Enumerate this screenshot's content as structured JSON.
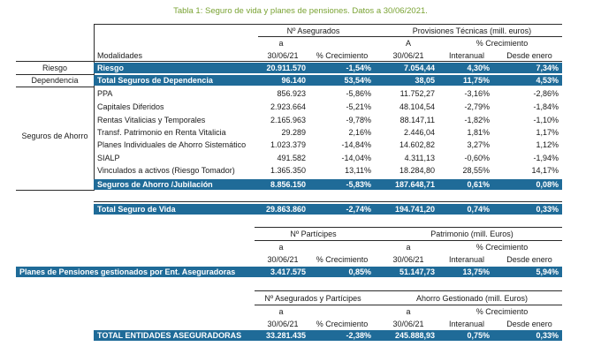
{
  "title": "Tabla 1: Seguro de vida y planes de pensiones. Datos a 30/06/2021.",
  "colors": {
    "band": "#1f6b98",
    "title": "#7aa334"
  },
  "s1": {
    "h_asegurados": "Nº Asegurados",
    "h_provisiones": "Provisiones Técnicas (mill. euros)",
    "h_a": "a",
    "h_a2": "A",
    "h_crec": "% Crecimiento",
    "h_modalidades": "Modalidades",
    "h_date": "30/06/21",
    "h_crec2": "% Crecimiento",
    "h_date2": "30/06/21",
    "h_interanual": "Interanual",
    "h_desde": "Desde enero",
    "cat_riesgo": "Riesgo",
    "cat_dependencia": "Dependencia",
    "cat_ahorro": "Seguros de Ahorro",
    "riesgo": {
      "label": "Riesgo",
      "v1": "20.911.570",
      "v2": "-1,54%",
      "v3": "7.054,44",
      "v4": "4,30%",
      "v5": "7,34%"
    },
    "dependencia": {
      "label": "Total Seguros de Dependencia",
      "v1": "96.140",
      "v2": "53,54%",
      "v3": "38,05",
      "v4": "11,75%",
      "v5": "4,53%"
    },
    "ahorro_rows": [
      {
        "label": "PPA",
        "v1": "856.923",
        "v2": "-5,86%",
        "v3": "11.752,27",
        "v4": "-3,16%",
        "v5": "-2,86%"
      },
      {
        "label": "Capitales Diferidos",
        "v1": "2.923.664",
        "v2": "-5,21%",
        "v3": "48.104,54",
        "v4": "-2,79%",
        "v5": "-1,84%"
      },
      {
        "label": "Rentas Vitalicias y Temporales",
        "v1": "2.165.963",
        "v2": "-9,78%",
        "v3": "88.147,11",
        "v4": "-1,82%",
        "v5": "-1,10%"
      },
      {
        "label": "Transf. Patrimonio en Renta Vitalicia",
        "v1": "29.289",
        "v2": "2,16%",
        "v3": "2.446,04",
        "v4": "1,81%",
        "v5": "1,17%"
      },
      {
        "label": "Planes Individuales de Ahorro Sistemático",
        "v1": "1.023.379",
        "v2": "-14,84%",
        "v3": "14.602,82",
        "v4": "3,27%",
        "v5": "1,12%"
      },
      {
        "label": "SIALP",
        "v1": "491.582",
        "v2": "-14,04%",
        "v3": "4.311,13",
        "v4": "-0,60%",
        "v5": "-1,94%"
      },
      {
        "label": "Vinculados a activos (Riesgo Tomador)",
        "v1": "1.365.350",
        "v2": "13,11%",
        "v3": "18.284,80",
        "v4": "28,55%",
        "v5": "14,17%"
      }
    ],
    "ahorro_total": {
      "label": "Seguros de Ahorro /Jubilación",
      "v1": "8.856.150",
      "v2": "-5,83%",
      "v3": "187.648,71",
      "v4": "0,61%",
      "v5": "0,08%"
    },
    "total_vida": {
      "label": "Total Seguro de Vida",
      "v1": "29.863.860",
      "v2": "-2,74%",
      "v3": "194.741,20",
      "v4": "0,74%",
      "v5": "0,33%"
    }
  },
  "s2": {
    "h_participes": "Nº Partícipes",
    "h_patrimonio": "Patrimonio (mill. Euros)",
    "h_a": "a",
    "h_a2": "a",
    "h_crec": "% Crecimiento",
    "h_date": "30/06/21",
    "h_crec2": "% Crecimiento",
    "h_date2": "30/06/21",
    "h_interanual": "Interanual",
    "h_desde": "Desde enero",
    "row": {
      "label": "Planes de Pensiones gestionados por Ent. Aseguradoras",
      "v1": "3.417.575",
      "v2": "0,85%",
      "v3": "51.147,73",
      "v4": "13,75%",
      "v5": "5,94%"
    }
  },
  "s3": {
    "h_asegurados": "Nº Asegurados y Partícipes",
    "h_ahorro": "Ahorro Gestionado (mill. Euros)",
    "h_a": "a",
    "h_a2": "a",
    "h_crec": "% Crecimiento",
    "h_date": "30/06/21",
    "h_crec2": "% Crecimiento",
    "h_date2": "30/06/21",
    "h_interanual": "Interanual",
    "h_desde": "Desde enero",
    "row": {
      "label": "TOTAL ENTIDADES ASEGURADORAS",
      "v1": "33.281.435",
      "v2": "-2,38%",
      "v3": "245.888,93",
      "v4": "0,75%",
      "v5": "0,33%"
    }
  }
}
